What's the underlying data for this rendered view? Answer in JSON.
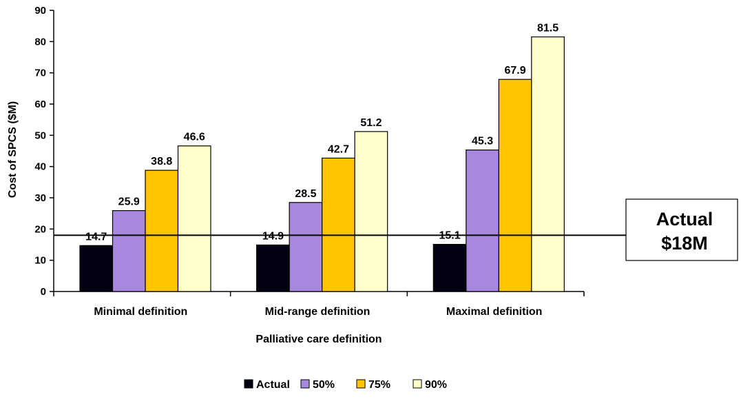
{
  "chart_data": {
    "type": "bar",
    "xlabel": "Palliative care definition",
    "ylabel": "Cost of SPCS ($M)",
    "categories": [
      "Minimal definition",
      "Mid-range definition",
      "Maximal definition"
    ],
    "series": [
      {
        "name": "Actual",
        "color": "#000010",
        "values": [
          14.7,
          14.9,
          15.1
        ]
      },
      {
        "name": "50%",
        "color": "#a887df",
        "values": [
          25.9,
          28.5,
          45.3
        ]
      },
      {
        "name": "75%",
        "color": "#ffc400",
        "values": [
          38.8,
          42.7,
          67.9
        ]
      },
      {
        "name": "90%",
        "color": "#ffffcc",
        "values": [
          46.6,
          51.2,
          81.5
        ]
      }
    ],
    "ylim": [
      0,
      90
    ],
    "yticks": [
      0,
      10,
      20,
      30,
      40,
      50,
      60,
      70,
      80,
      90
    ],
    "grid": false,
    "legend_position": "bottom",
    "reference_line": {
      "value": 18,
      "label_line1": "Actual",
      "label_line2": "$18M"
    }
  }
}
